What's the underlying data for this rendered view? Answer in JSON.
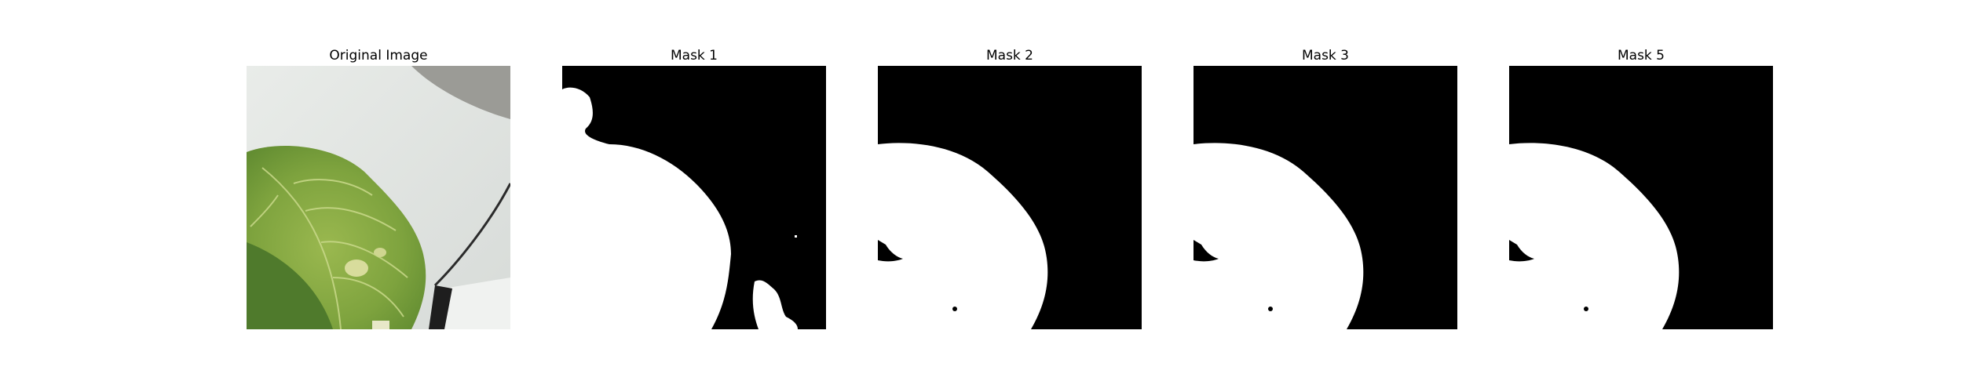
{
  "figure": {
    "panels": [
      {
        "title": "Original Image",
        "kind": "photo"
      },
      {
        "title": "Mask 1",
        "kind": "mask"
      },
      {
        "title": "Mask 2",
        "kind": "mask"
      },
      {
        "title": "Mask 3",
        "kind": "mask"
      },
      {
        "title": "Mask 5",
        "kind": "mask"
      }
    ]
  },
  "colors": {
    "mask_foreground": "#ffffff",
    "mask_background": "#000000",
    "leaf_green": "#7ea33e",
    "leaf_dark": "#4f7a2c",
    "background_white": "#e3e6e3"
  }
}
